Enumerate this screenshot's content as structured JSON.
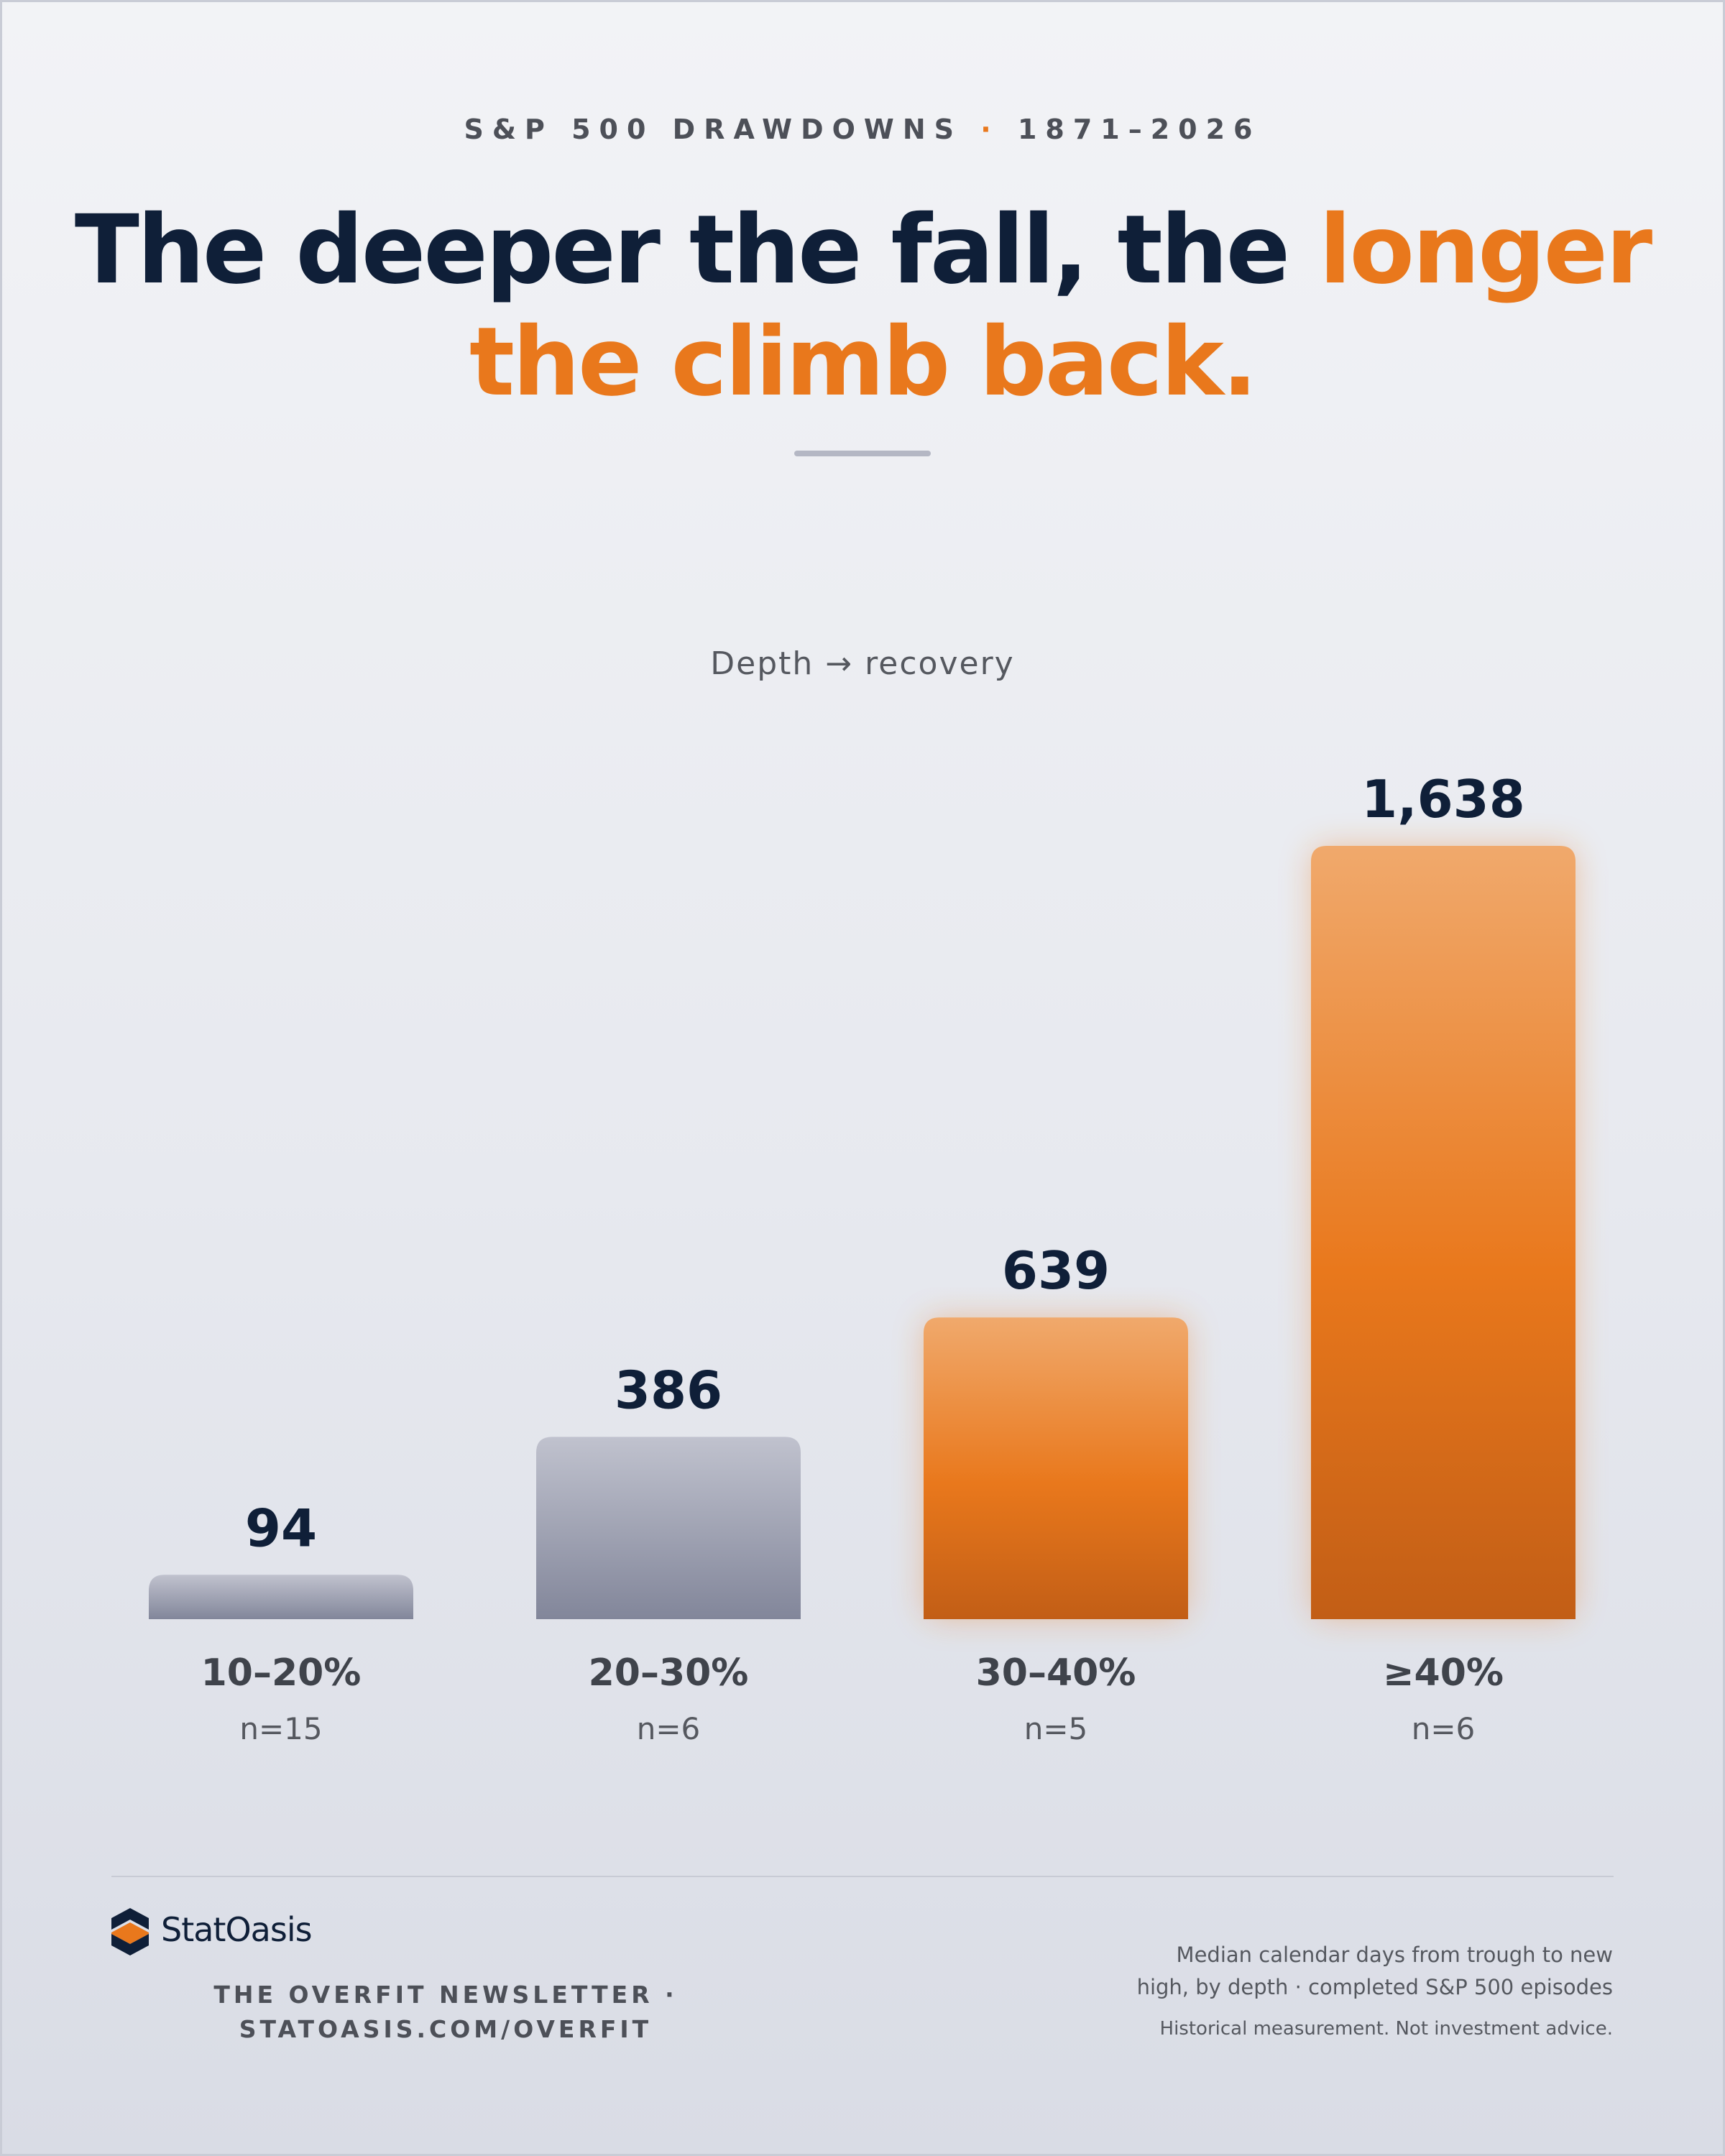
{
  "header": {
    "eyebrow_left": "S&P 500 DRAWDOWNS",
    "eyebrow_separator": "·",
    "eyebrow_right": "1871–2026",
    "headline_part1": "The deeper the fall, the ",
    "headline_accent": "longer the climb back."
  },
  "chart_data": {
    "type": "bar",
    "title": "",
    "subtitle": "Depth → recovery",
    "xlabel": "",
    "ylabel": "",
    "categories": [
      "10–20%",
      "20–30%",
      "30–40%",
      "≥40%"
    ],
    "values": [
      94,
      386,
      639,
      1638
    ],
    "value_labels": [
      "94",
      "386",
      "639",
      "1,638"
    ],
    "sample_sizes": [
      "n=15",
      "n=6",
      "n=5",
      "n=6"
    ],
    "ylim": [
      0,
      1638
    ],
    "grid": false,
    "legend": "none",
    "highlighted_categories": [
      "30–40%",
      "≥40%"
    ],
    "colors": {
      "muted_top": "#c0c2ce",
      "muted_bottom": "#82869a",
      "accent_top": "#f0a96c",
      "accent_mid": "#e9781c",
      "accent_bottom": "#c25e16"
    }
  },
  "footer": {
    "brand": "StatOasis",
    "logo_icon": "statoasis-logo-icon",
    "newsletter_line1": "THE OVERFIT NEWSLETTER ·",
    "newsletter_line2": "STATOASIS.COM/OVERFIT",
    "note_line1": "Median calendar days from trough to new",
    "note_line2": "high, by depth · completed S&P 500 episodes",
    "disclaimer": "Historical measurement. Not investment advice."
  },
  "colors": {
    "navy": "#0f1f38",
    "orange": "#e9781c",
    "text_gray": "#4d5058"
  }
}
